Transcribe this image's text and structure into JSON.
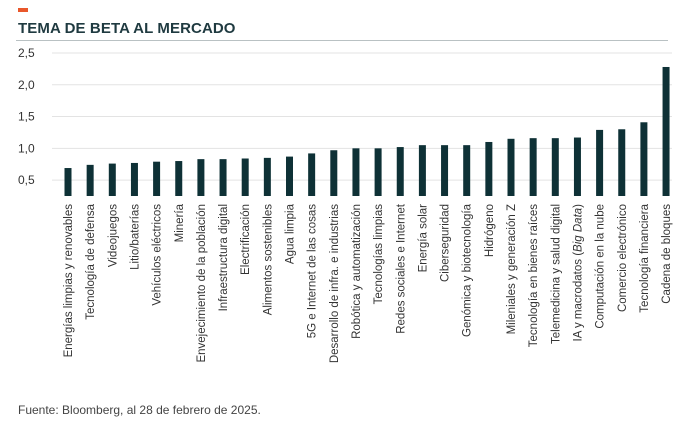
{
  "header": {
    "title": "TEMA DE BETA AL MERCADO"
  },
  "footer": {
    "source": "Fuente: Bloomberg, al 28 de febrero de 2025."
  },
  "colors": {
    "accent": "#e9572b",
    "bar": "#0e3136",
    "grid": "#e3e3e3",
    "text": "#333333"
  },
  "chart_data": {
    "type": "bar",
    "title": "TEMA DE BETA AL MERCADO",
    "xlabel": "",
    "ylabel": "",
    "ylim": [
      0.25,
      2.5
    ],
    "yticks": [
      0.5,
      1.0,
      1.5,
      2.0,
      2.5
    ],
    "ytick_labels": [
      "0,5",
      "1,0",
      "1,5",
      "2,0",
      "2,5"
    ],
    "grid": true,
    "categories": [
      "Energías limpias y renovables",
      "Tecnología de defensa",
      "Videojuegos",
      "Litio/baterías",
      "Vehículos eléctricos",
      "Minería",
      "Envejecimiento de la población",
      "Infraestructura digital",
      "Electrificación",
      "Alimentos sostenibles",
      "Agua limpia",
      "5G e Internet de las cosas",
      "Desarrollo de infra. e industrias",
      "Robótica y automatización",
      "Tecnologías limpias",
      "Redes sociales e Internet",
      "Energía solar",
      "Ciberseguridad",
      "Genómica y biotecnología",
      "Hidrógeno",
      "Mileniales y generación Z",
      "Tecnología en bienes raíces",
      "Telemedicina y salud digital",
      "IA y macrodatos (Big Data)",
      "Computación en la nube",
      "Comercio electrónico",
      "Tecnología financiera",
      "Cadena de bloques"
    ],
    "values": [
      0.69,
      0.74,
      0.76,
      0.77,
      0.79,
      0.8,
      0.83,
      0.83,
      0.84,
      0.85,
      0.87,
      0.92,
      0.97,
      1.0,
      1.0,
      1.02,
      1.05,
      1.05,
      1.05,
      1.1,
      1.15,
      1.16,
      1.16,
      1.17,
      1.29,
      1.3,
      1.41,
      2.28
    ]
  }
}
